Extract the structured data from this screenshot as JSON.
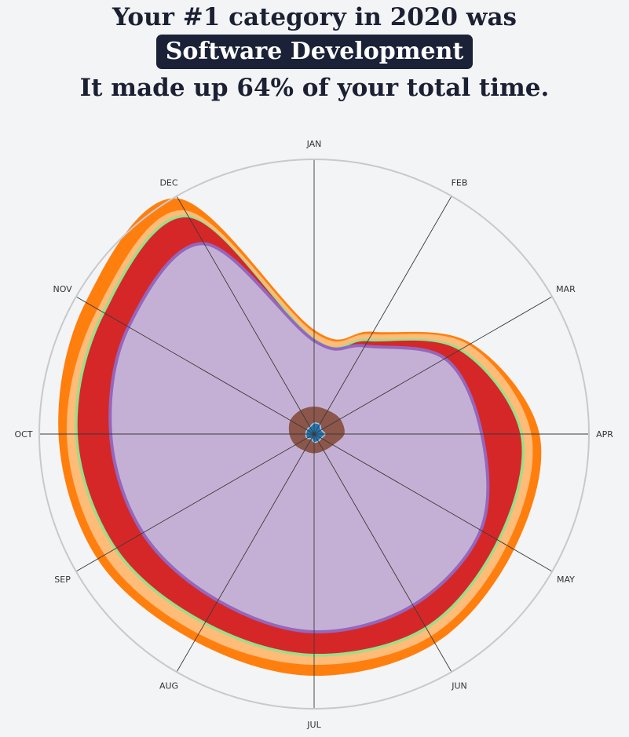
{
  "header": {
    "line1": "Your #1 category in 2020 was",
    "highlight": "Software Development",
    "line3": "It made up 64% of your total time."
  },
  "chart_data": {
    "type": "radar-stacked-area",
    "months": [
      "JAN",
      "FEB",
      "MAR",
      "APR",
      "MAY",
      "JUN",
      "JUL",
      "AUG",
      "SEP",
      "OCT",
      "NOV",
      "DEC"
    ],
    "rmax": 100,
    "grid": false,
    "series": [
      {
        "color": "#1f77b4",
        "values": [
          4,
          4,
          3,
          4,
          3,
          3,
          3,
          2,
          3,
          3,
          3,
          3
        ]
      },
      {
        "color": "#8c564b",
        "values": [
          10,
          10,
          11,
          11,
          8,
          7,
          7,
          7,
          8,
          9,
          10,
          10
        ]
      },
      {
        "color": "#9467bd",
        "values": [
          34,
          37,
          55,
          61,
          70,
          72,
          72,
          70,
          72,
          74,
          78,
          80
        ]
      },
      {
        "color": "#d62728",
        "values": [
          34,
          39,
          61,
          75,
          77,
          81,
          80,
          79,
          83,
          86,
          88,
          91
        ]
      },
      {
        "color": "#98df8a",
        "values": [
          35,
          40,
          62,
          76,
          78,
          82,
          81,
          80,
          84,
          87,
          89,
          92
        ]
      },
      {
        "color": "#ffbb78",
        "values": [
          37,
          42,
          65,
          79,
          81,
          85,
          84,
          84,
          88,
          90,
          91,
          94
        ]
      },
      {
        "color": "#ff7f0e",
        "values": [
          38,
          43,
          66,
          82,
          84,
          88,
          88,
          87,
          91,
          93,
          96,
          99
        ]
      }
    ]
  }
}
